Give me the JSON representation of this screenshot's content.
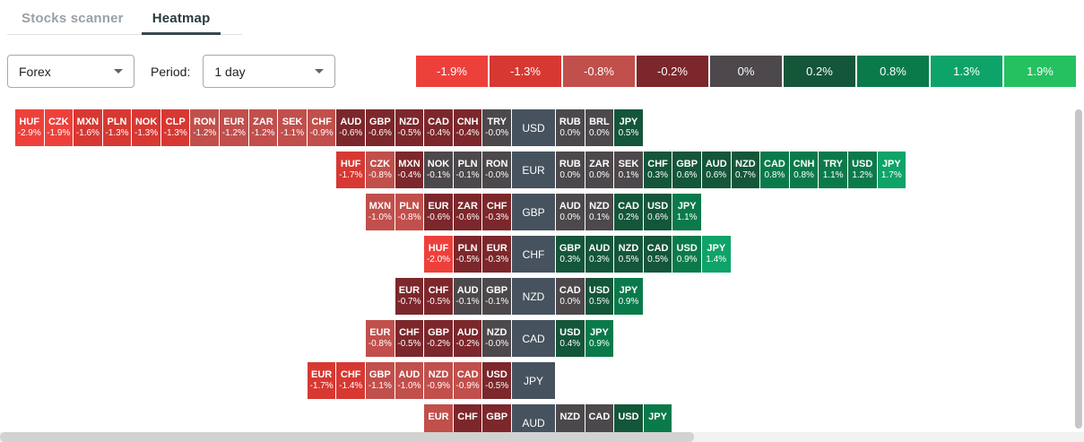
{
  "tabs": [
    {
      "label": "Stocks scanner",
      "active": false
    },
    {
      "label": "Heatmap",
      "active": true
    }
  ],
  "controls": {
    "market": {
      "value": "Forex"
    },
    "period_label": "Period:",
    "period": {
      "value": "1 day"
    }
  },
  "legend": [
    {
      "label": "-1.9%",
      "color": "#ee403b"
    },
    {
      "label": "-1.3%",
      "color": "#d73832"
    },
    {
      "label": "-0.8%",
      "color": "#c14f4b"
    },
    {
      "label": "-0.2%",
      "color": "#7c272b"
    },
    {
      "label": "0%",
      "color": "#4d484b"
    },
    {
      "label": "0.2%",
      "color": "#14563a"
    },
    {
      "label": "0.8%",
      "color": "#0b7a4b"
    },
    {
      "label": "1.3%",
      "color": "#0ea368"
    },
    {
      "label": "1.9%",
      "color": "#25c160"
    }
  ],
  "heatmap": {
    "label_cell_color": "#46535f",
    "rows": [
      {
        "base": "USD",
        "left": [
          {
            "code": "HUF",
            "value": "-2.9%"
          },
          {
            "code": "CZK",
            "value": "-1.9%"
          },
          {
            "code": "MXN",
            "value": "-1.6%"
          },
          {
            "code": "PLN",
            "value": "-1.3%"
          },
          {
            "code": "NOK",
            "value": "-1.3%"
          },
          {
            "code": "CLP",
            "value": "-1.3%"
          },
          {
            "code": "RON",
            "value": "-1.2%"
          },
          {
            "code": "EUR",
            "value": "-1.2%"
          },
          {
            "code": "ZAR",
            "value": "-1.2%"
          },
          {
            "code": "SEK",
            "value": "-1.1%"
          },
          {
            "code": "CHF",
            "value": "-0.9%"
          },
          {
            "code": "AUD",
            "value": "-0.6%"
          },
          {
            "code": "GBP",
            "value": "-0.6%"
          },
          {
            "code": "NZD",
            "value": "-0.5%"
          },
          {
            "code": "CAD",
            "value": "-0.4%"
          },
          {
            "code": "CNH",
            "value": "-0.4%"
          },
          {
            "code": "TRY",
            "value": "-0.0%"
          }
        ],
        "right": [
          {
            "code": "RUB",
            "value": "0.0%"
          },
          {
            "code": "BRL",
            "value": "0.0%"
          },
          {
            "code": "JPY",
            "value": "0.5%"
          }
        ]
      },
      {
        "base": "EUR",
        "left": [
          {
            "code": "HUF",
            "value": "-1.7%"
          },
          {
            "code": "CZK",
            "value": "-0.8%"
          },
          {
            "code": "MXN",
            "value": "-0.4%"
          },
          {
            "code": "NOK",
            "value": "-0.1%"
          },
          {
            "code": "PLN",
            "value": "-0.1%"
          },
          {
            "code": "RON",
            "value": "-0.0%"
          }
        ],
        "right": [
          {
            "code": "RUB",
            "value": "0.0%"
          },
          {
            "code": "ZAR",
            "value": "0.0%"
          },
          {
            "code": "SEK",
            "value": "0.1%"
          },
          {
            "code": "CHF",
            "value": "0.3%"
          },
          {
            "code": "GBP",
            "value": "0.6%"
          },
          {
            "code": "AUD",
            "value": "0.6%"
          },
          {
            "code": "NZD",
            "value": "0.7%"
          },
          {
            "code": "CAD",
            "value": "0.8%"
          },
          {
            "code": "CNH",
            "value": "0.8%"
          },
          {
            "code": "TRY",
            "value": "1.1%"
          },
          {
            "code": "USD",
            "value": "1.2%"
          },
          {
            "code": "JPY",
            "value": "1.7%"
          }
        ]
      },
      {
        "base": "GBP",
        "left": [
          {
            "code": "MXN",
            "value": "-1.0%"
          },
          {
            "code": "PLN",
            "value": "-0.8%"
          },
          {
            "code": "EUR",
            "value": "-0.6%"
          },
          {
            "code": "ZAR",
            "value": "-0.6%"
          },
          {
            "code": "CHF",
            "value": "-0.3%"
          }
        ],
        "right": [
          {
            "code": "AUD",
            "value": "0.0%"
          },
          {
            "code": "NZD",
            "value": "0.1%"
          },
          {
            "code": "CAD",
            "value": "0.2%"
          },
          {
            "code": "USD",
            "value": "0.6%"
          },
          {
            "code": "JPY",
            "value": "1.1%"
          }
        ]
      },
      {
        "base": "CHF",
        "left": [
          {
            "code": "HUF",
            "value": "-2.0%"
          },
          {
            "code": "PLN",
            "value": "-0.5%"
          },
          {
            "code": "EUR",
            "value": "-0.3%"
          }
        ],
        "right": [
          {
            "code": "GBP",
            "value": "0.3%"
          },
          {
            "code": "AUD",
            "value": "0.3%"
          },
          {
            "code": "NZD",
            "value": "0.5%"
          },
          {
            "code": "CAD",
            "value": "0.5%"
          },
          {
            "code": "USD",
            "value": "0.9%"
          },
          {
            "code": "JPY",
            "value": "1.4%"
          }
        ]
      },
      {
        "base": "NZD",
        "left": [
          {
            "code": "EUR",
            "value": "-0.7%"
          },
          {
            "code": "CHF",
            "value": "-0.5%"
          },
          {
            "code": "AUD",
            "value": "-0.1%"
          },
          {
            "code": "GBP",
            "value": "-0.1%"
          }
        ],
        "right": [
          {
            "code": "CAD",
            "value": "0.0%"
          },
          {
            "code": "USD",
            "value": "0.5%"
          },
          {
            "code": "JPY",
            "value": "0.9%"
          }
        ]
      },
      {
        "base": "CAD",
        "left": [
          {
            "code": "EUR",
            "value": "-0.8%"
          },
          {
            "code": "CHF",
            "value": "-0.5%"
          },
          {
            "code": "GBP",
            "value": "-0.2%"
          },
          {
            "code": "AUD",
            "value": "-0.2%"
          },
          {
            "code": "NZD",
            "value": "-0.0%"
          }
        ],
        "right": [
          {
            "code": "USD",
            "value": "0.4%"
          },
          {
            "code": "JPY",
            "value": "0.9%"
          }
        ]
      },
      {
        "base": "JPY",
        "left": [
          {
            "code": "EUR",
            "value": "-1.7%"
          },
          {
            "code": "CHF",
            "value": "-1.4%"
          },
          {
            "code": "GBP",
            "value": "-1.1%"
          },
          {
            "code": "AUD",
            "value": "-1.0%"
          },
          {
            "code": "NZD",
            "value": "-0.9%"
          },
          {
            "code": "CAD",
            "value": "-0.9%"
          },
          {
            "code": "USD",
            "value": "-0.5%"
          }
        ],
        "right": []
      },
      {
        "base": "AUD",
        "left": [
          {
            "code": "EUR",
            "value": "",
            "legend_index": 2
          },
          {
            "code": "CHF",
            "value": "",
            "legend_index": 3
          },
          {
            "code": "GBP",
            "value": "",
            "legend_index": 3
          }
        ],
        "right": [
          {
            "code": "NZD",
            "value": "",
            "legend_index": 4
          },
          {
            "code": "CAD",
            "value": "",
            "legend_index": 4
          },
          {
            "code": "USD",
            "value": "",
            "legend_index": 5
          },
          {
            "code": "JPY",
            "value": "",
            "legend_index": 6
          }
        ]
      }
    ]
  }
}
